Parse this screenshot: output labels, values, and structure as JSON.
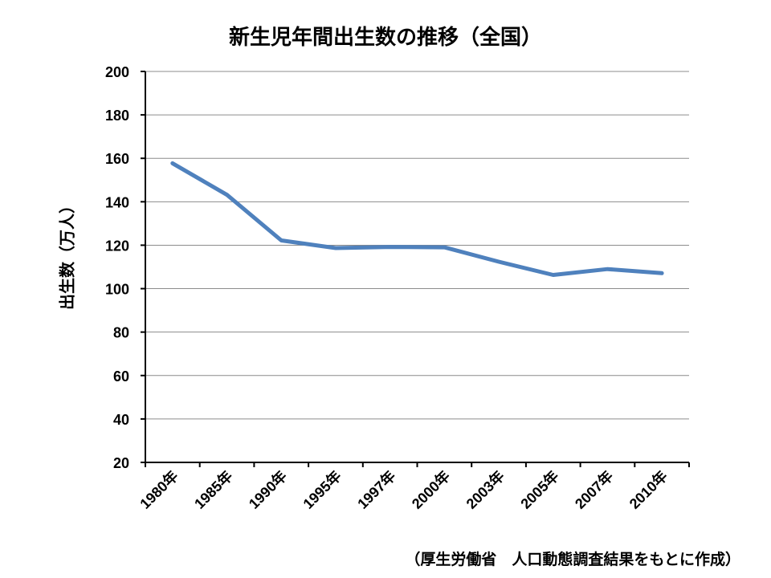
{
  "chart_data": {
    "type": "line",
    "title": "新生児年間出生数の推移（全国）",
    "ylabel": "出生数（万人）",
    "xlabel": "",
    "categories": [
      "1980年",
      "1985年",
      "1990年",
      "1995年",
      "1997年",
      "2000年",
      "2003年",
      "2005年",
      "2007年",
      "2010年"
    ],
    "series": [
      {
        "values": [
          157.7,
          143.2,
          122.2,
          118.7,
          119.2,
          119.0,
          112.4,
          106.3,
          109.0,
          107.1
        ]
      }
    ],
    "ylim": [
      20,
      200
    ],
    "yticks": [
      "20",
      "40",
      "60",
      "80",
      "100",
      "120",
      "140",
      "160",
      "180",
      "200"
    ],
    "grid": true,
    "legend": "none",
    "line_color": "#4F81BD",
    "source": "（厚生労働省　人口動態調査結果をもとに作成）"
  }
}
